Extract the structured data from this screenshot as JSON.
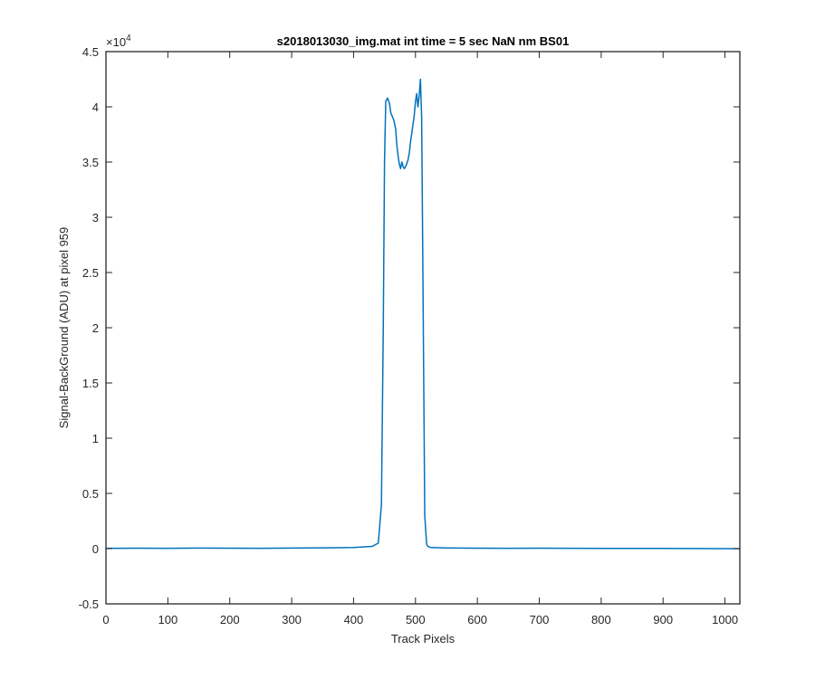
{
  "chart_data": {
    "type": "line",
    "title": "s2018013030_img.mat int time = 5 sec  NaN nm BS01",
    "xlabel": "Track Pixels",
    "ylabel": "Signal-BackGround (ADU) at pixel 959",
    "xlim": [
      0,
      1024
    ],
    "ylim": [
      -0.5,
      4.5
    ],
    "y_exponent_label": "×10",
    "y_exponent_power": "4",
    "x_ticks": [
      0,
      100,
      200,
      300,
      400,
      500,
      600,
      700,
      800,
      900,
      1000
    ],
    "x_tick_labels": [
      "0",
      "100",
      "200",
      "300",
      "400",
      "500",
      "600",
      "700",
      "800",
      "900",
      "1000"
    ],
    "y_ticks": [
      -0.5,
      0,
      0.5,
      1,
      1.5,
      2,
      2.5,
      3,
      3.5,
      4,
      4.5
    ],
    "y_tick_labels": [
      "-0.5",
      "0",
      "0.5",
      "1",
      "1.5",
      "2",
      "2.5",
      "3",
      "3.5",
      "4",
      "4.5"
    ],
    "grid": false,
    "line_color": "#0072BD",
    "axis_color": "#262626",
    "series": [
      {
        "x": [
          0,
          50,
          100,
          150,
          200,
          250,
          300,
          350,
          400,
          430,
          440,
          445,
          448,
          450,
          452,
          455,
          458,
          460,
          462,
          465,
          468,
          470,
          472,
          474,
          476,
          478,
          480,
          482,
          485,
          488,
          490,
          492,
          495,
          498,
          500,
          502,
          504,
          506,
          508,
          510,
          512,
          515,
          518,
          520,
          525,
          550,
          600,
          650,
          700,
          750,
          800,
          850,
          900,
          950,
          1000,
          1024
        ],
        "y": [
          0.003,
          0.004,
          0.003,
          0.005,
          0.004,
          0.003,
          0.005,
          0.007,
          0.01,
          0.02,
          0.05,
          0.4,
          2.0,
          3.5,
          4.05,
          4.08,
          4.03,
          3.95,
          3.92,
          3.88,
          3.8,
          3.65,
          3.55,
          3.48,
          3.44,
          3.5,
          3.46,
          3.44,
          3.47,
          3.52,
          3.58,
          3.68,
          3.8,
          3.92,
          4.05,
          4.12,
          4.0,
          4.1,
          4.25,
          3.9,
          2.5,
          0.3,
          0.04,
          0.02,
          0.01,
          0.006,
          0.004,
          0.003,
          0.004,
          0.003,
          0.002,
          0.002,
          0.002,
          0.001,
          0.0,
          0.0
        ]
      }
    ]
  }
}
